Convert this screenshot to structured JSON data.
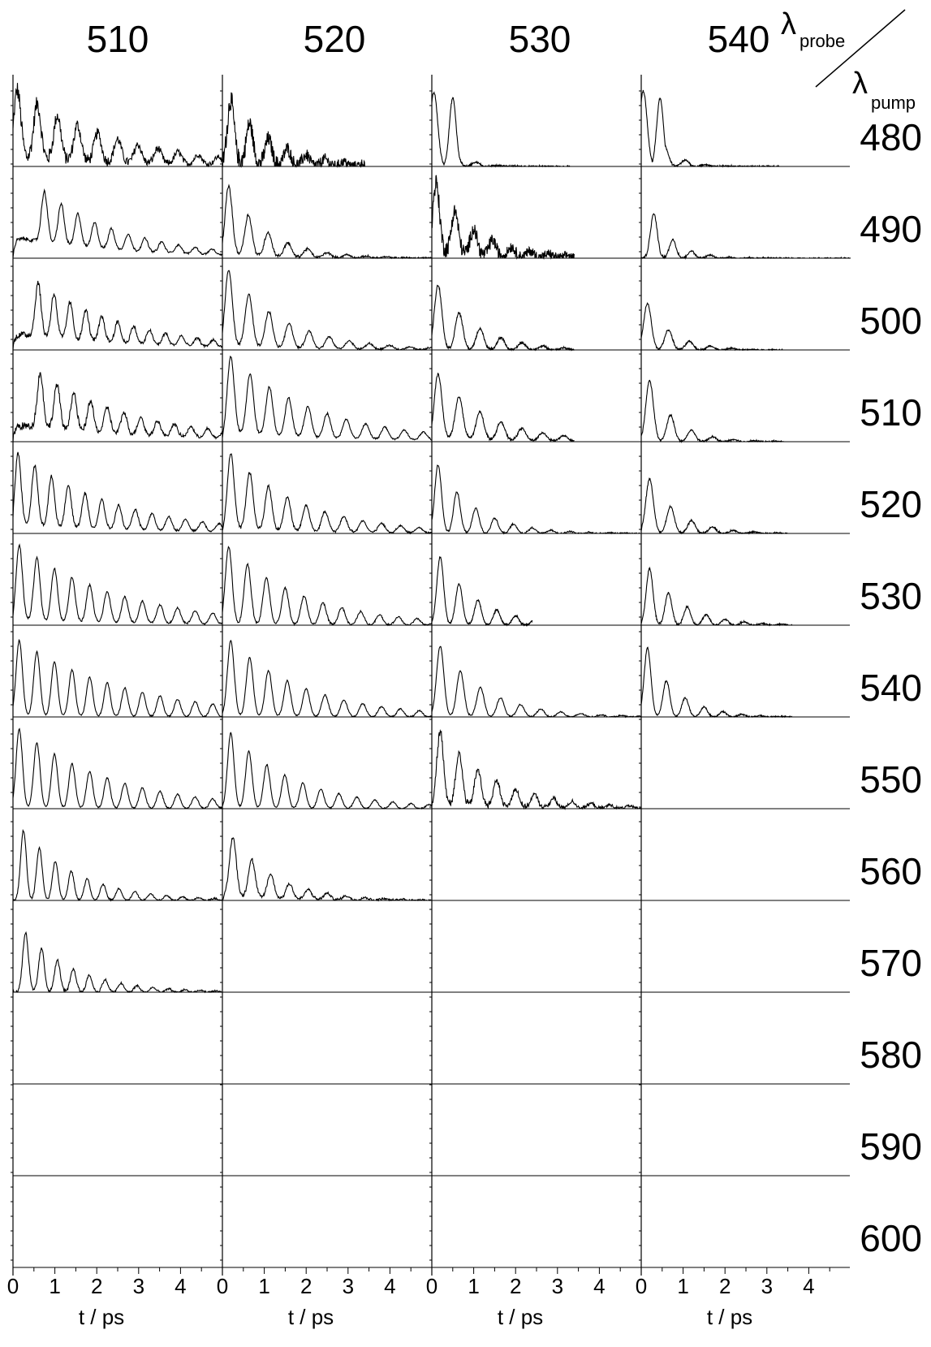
{
  "chart_data": {
    "type": "line",
    "description_units": "normalized transient signal vs delay time",
    "column_header_label": "λprobe",
    "row_header_label": "λpump",
    "probe_wavelengths": [
      "510",
      "520",
      "530",
      "540"
    ],
    "pump_wavelengths": [
      "480",
      "490",
      "500",
      "510",
      "520",
      "530",
      "540",
      "550",
      "560",
      "570",
      "580",
      "590",
      "600"
    ],
    "xlabel": "t / ps",
    "xticks": [
      "0",
      "1",
      "2",
      "3",
      "4"
    ],
    "xlim": [
      0,
      5
    ],
    "ylim": [
      0,
      1
    ],
    "traces": [
      {
        "probe": "510",
        "pump": "480",
        "tmax": 5.0,
        "period": 0.48,
        "first_peak": 0.1,
        "decay": 2.2,
        "amp": 0.85,
        "noise": 0.22,
        "base": 0.1
      },
      {
        "probe": "520",
        "pump": "480",
        "tmax": 3.4,
        "period": 0.45,
        "first_peak": 0.2,
        "decay": 1.0,
        "amp": 0.9,
        "noise": 0.25,
        "base": 0.05
      },
      {
        "probe": "530",
        "pump": "480",
        "tmax": 3.3,
        "period": 0.5,
        "first_peak": 0.05,
        "decay": 0.35,
        "amp": 1.0,
        "noise": 0.02,
        "base": 0.0,
        "second_peak": 0.5
      },
      {
        "probe": "540",
        "pump": "480",
        "tmax": 3.3,
        "period": 0.5,
        "first_peak": 0.05,
        "decay": 0.4,
        "amp": 1.0,
        "noise": 0.02,
        "base": 0.0,
        "second_peak": 0.45
      },
      {
        "probe": "510",
        "pump": "490",
        "tmax": 5.0,
        "period": 0.4,
        "first_peak": 0.75,
        "decay": 1.8,
        "amp": 0.9,
        "noise": 0.04,
        "base": 0.25
      },
      {
        "probe": "520",
        "pump": "490",
        "tmax": 5.0,
        "period": 0.47,
        "first_peak": 0.15,
        "decay": 0.9,
        "amp": 0.95,
        "noise": 0.04,
        "base": 0.05
      },
      {
        "probe": "530",
        "pump": "490",
        "tmax": 3.4,
        "period": 0.45,
        "first_peak": 0.1,
        "decay": 0.9,
        "amp": 0.9,
        "noise": 0.22,
        "base": 0.1
      },
      {
        "probe": "540",
        "pump": "490",
        "tmax": 5.0,
        "period": 0.45,
        "first_peak": 0.3,
        "decay": 0.5,
        "amp": 0.95,
        "noise": 0.03,
        "base": 0.0
      },
      {
        "probe": "510",
        "pump": "500",
        "tmax": 5.0,
        "period": 0.38,
        "first_peak": 0.6,
        "decay": 2.0,
        "amp": 0.85,
        "noise": 0.08,
        "base": 0.2
      },
      {
        "probe": "520",
        "pump": "500",
        "tmax": 5.0,
        "period": 0.48,
        "first_peak": 0.15,
        "decay": 1.3,
        "amp": 1.0,
        "noise": 0.03,
        "base": 0.05
      },
      {
        "probe": "530",
        "pump": "500",
        "tmax": 3.4,
        "period": 0.5,
        "first_peak": 0.15,
        "decay": 0.9,
        "amp": 0.9,
        "noise": 0.03,
        "base": 0.0
      },
      {
        "probe": "540",
        "pump": "500",
        "tmax": 3.4,
        "period": 0.5,
        "first_peak": 0.15,
        "decay": 0.6,
        "amp": 0.7,
        "noise": 0.02,
        "base": 0.0
      },
      {
        "probe": "510",
        "pump": "510",
        "tmax": 5.0,
        "period": 0.4,
        "first_peak": 0.65,
        "decay": 2.2,
        "amp": 0.85,
        "noise": 0.1,
        "base": 0.2
      },
      {
        "probe": "520",
        "pump": "510",
        "tmax": 5.0,
        "period": 0.46,
        "first_peak": 0.2,
        "decay": 2.0,
        "amp": 1.0,
        "noise": 0.03,
        "base": 0.1
      },
      {
        "probe": "530",
        "pump": "510",
        "tmax": 3.4,
        "period": 0.5,
        "first_peak": 0.15,
        "decay": 1.2,
        "amp": 0.85,
        "noise": 0.03,
        "base": 0.05
      },
      {
        "probe": "540",
        "pump": "510",
        "tmax": 3.4,
        "period": 0.5,
        "first_peak": 0.2,
        "decay": 0.6,
        "amp": 1.0,
        "noise": 0.02,
        "base": 0.0
      },
      {
        "probe": "510",
        "pump": "520",
        "tmax": 5.0,
        "period": 0.4,
        "first_peak": 0.12,
        "decay": 2.2,
        "amp": 0.9,
        "noise": 0.04,
        "base": 0.1
      },
      {
        "probe": "520",
        "pump": "520",
        "tmax": 5.0,
        "period": 0.45,
        "first_peak": 0.2,
        "decay": 1.7,
        "amp": 1.0,
        "noise": 0.04,
        "base": 0.05
      },
      {
        "probe": "530",
        "pump": "520",
        "tmax": 5.0,
        "period": 0.45,
        "first_peak": 0.15,
        "decay": 0.9,
        "amp": 0.95,
        "noise": 0.02,
        "base": 0.0
      },
      {
        "probe": "540",
        "pump": "520",
        "tmax": 3.5,
        "period": 0.5,
        "first_peak": 0.2,
        "decay": 0.7,
        "amp": 0.85,
        "noise": 0.02,
        "base": 0.0
      },
      {
        "probe": "510",
        "pump": "530",
        "tmax": 5.0,
        "period": 0.42,
        "first_peak": 0.15,
        "decay": 2.4,
        "amp": 0.95,
        "noise": 0.03,
        "base": 0.05
      },
      {
        "probe": "520",
        "pump": "530",
        "tmax": 5.0,
        "period": 0.45,
        "first_peak": 0.15,
        "decay": 1.8,
        "amp": 1.0,
        "noise": 0.03,
        "base": 0.0
      },
      {
        "probe": "530",
        "pump": "530",
        "tmax": 2.4,
        "period": 0.45,
        "first_peak": 0.2,
        "decay": 0.9,
        "amp": 1.0,
        "noise": 0.01,
        "base": 0.0
      },
      {
        "probe": "540",
        "pump": "530",
        "tmax": 3.6,
        "period": 0.45,
        "first_peak": 0.2,
        "decay": 0.8,
        "amp": 0.85,
        "noise": 0.02,
        "base": 0.0
      },
      {
        "probe": "510",
        "pump": "540",
        "tmax": 5.0,
        "period": 0.42,
        "first_peak": 0.15,
        "decay": 2.6,
        "amp": 0.95,
        "noise": 0.01,
        "base": 0.0
      },
      {
        "probe": "520",
        "pump": "540",
        "tmax": 5.0,
        "period": 0.45,
        "first_peak": 0.2,
        "decay": 1.8,
        "amp": 1.0,
        "noise": 0.01,
        "base": 0.0
      },
      {
        "probe": "530",
        "pump": "540",
        "tmax": 5.0,
        "period": 0.48,
        "first_peak": 0.2,
        "decay": 1.1,
        "amp": 1.0,
        "noise": 0.01,
        "base": 0.0
      },
      {
        "probe": "540",
        "pump": "540",
        "tmax": 3.6,
        "period": 0.45,
        "first_peak": 0.15,
        "decay": 0.7,
        "amp": 1.0,
        "noise": 0.01,
        "base": 0.0
      },
      {
        "probe": "510",
        "pump": "550",
        "tmax": 5.0,
        "period": 0.42,
        "first_peak": 0.15,
        "decay": 2.2,
        "amp": 1.0,
        "noise": 0.01,
        "base": 0.0
      },
      {
        "probe": "520",
        "pump": "550",
        "tmax": 5.0,
        "period": 0.43,
        "first_peak": 0.2,
        "decay": 1.6,
        "amp": 1.0,
        "noise": 0.01,
        "base": 0.0
      },
      {
        "probe": "530",
        "pump": "550",
        "tmax": 5.0,
        "period": 0.45,
        "first_peak": 0.2,
        "decay": 1.3,
        "amp": 1.0,
        "noise": 0.1,
        "base": 0.05
      },
      {
        "probe": "510",
        "pump": "560",
        "tmax": 5.0,
        "period": 0.38,
        "first_peak": 0.25,
        "decay": 1.3,
        "amp": 1.0,
        "noise": 0.02,
        "base": 0.0
      },
      {
        "probe": "520",
        "pump": "560",
        "tmax": 5.0,
        "period": 0.45,
        "first_peak": 0.25,
        "decay": 1.0,
        "amp": 0.9,
        "noise": 0.05,
        "base": 0.05
      },
      {
        "probe": "510",
        "pump": "570",
        "tmax": 5.0,
        "period": 0.38,
        "first_peak": 0.3,
        "decay": 1.2,
        "amp": 0.9,
        "noise": 0.04,
        "base": 0.0
      }
    ]
  }
}
